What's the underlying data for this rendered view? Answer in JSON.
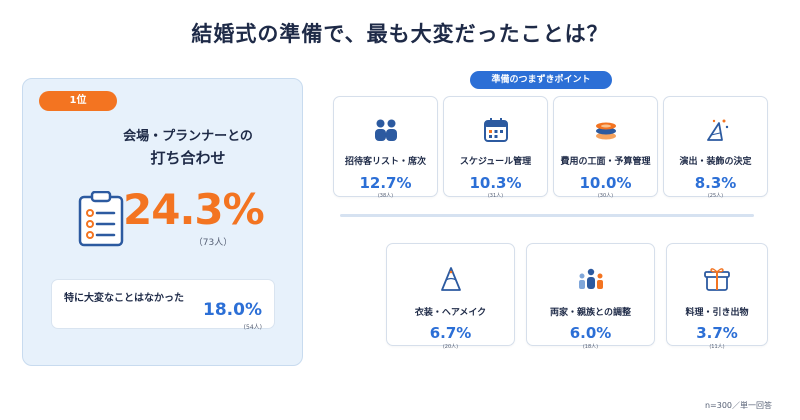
{
  "title": "結婚式の準備で、最も大変だったことは？",
  "top": {
    "rank": "1位",
    "label_line1": "会場・プランナーとの",
    "label_line2": "打ち合わせ",
    "percent": "24.3%",
    "count": "（73人）",
    "icon": "clipboard-checklist-icon"
  },
  "none": {
    "label": "特に大変なことはなかった",
    "percent": "18.0%",
    "count": "(54人)"
  },
  "section_label": "準備のつまずきポイント",
  "items": [
    {
      "label": "招待客リスト・席次",
      "percent": "12.7%",
      "count": "(38人)",
      "icon": "people-icon"
    },
    {
      "label": "スケジュール管理",
      "percent": "10.3%",
      "count": "(31人)",
      "icon": "calendar-icon"
    },
    {
      "label": "費用の工面・予算管理",
      "percent": "10.0%",
      "count": "(30人)",
      "icon": "coins-stack-icon"
    },
    {
      "label": "演出・装飾の決定",
      "percent": "8.3%",
      "count": "(25人)",
      "icon": "party-hat-icon"
    },
    {
      "label": "衣装・ヘアメイク",
      "percent": "6.7%",
      "count": "(20人)",
      "icon": "dress-icon"
    },
    {
      "label": "両家・親族との調整",
      "percent": "6.0%",
      "count": "(18人)",
      "icon": "family-icon"
    },
    {
      "label": "料理・引き出物",
      "percent": "3.7%",
      "count": "(11人)",
      "icon": "gift-icon"
    }
  ],
  "footnote": "n=300／単一回答",
  "colors": {
    "accent": "#f37421",
    "primary": "#2c6fd6",
    "panel": "#e7f1fb"
  }
}
